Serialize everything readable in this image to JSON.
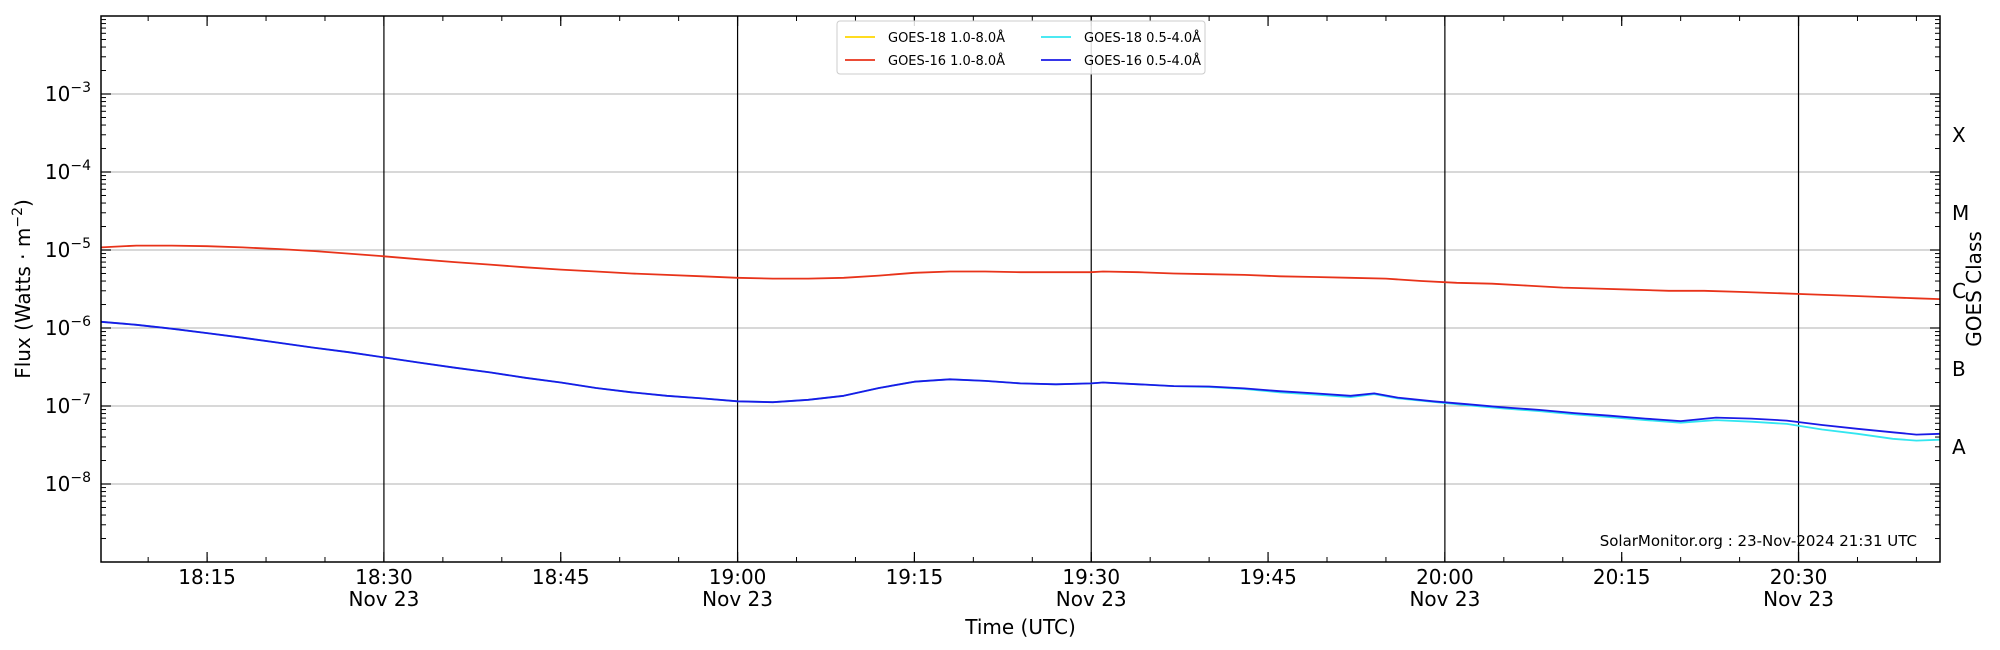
{
  "chart_data": {
    "type": "line",
    "title": "",
    "xlabel": "Time (UTC)",
    "ylabel": "Flux (Watts · m⁻²)",
    "y2label": "GOES Class",
    "yscale": "log",
    "ylim": [
      1e-09,
      0.01
    ],
    "xlim": [
      "18:06",
      "20:42"
    ],
    "grid": "horizontal at decades",
    "legend_position": "top-center",
    "credit": "SolarMonitor.org : 23-Nov-2024 21:31 UTC",
    "y_ticks": [
      {
        "value": 1e-08,
        "base": "10",
        "exp": "−8"
      },
      {
        "value": 1e-07,
        "base": "10",
        "exp": "−7"
      },
      {
        "value": 1e-06,
        "base": "10",
        "exp": "−6"
      },
      {
        "value": 1e-05,
        "base": "10",
        "exp": "−5"
      },
      {
        "value": 0.0001,
        "base": "10",
        "exp": "−4"
      },
      {
        "value": 0.001,
        "base": "10",
        "exp": "−3"
      }
    ],
    "x_ticks": [
      {
        "time": "18:15",
        "label": "18:15",
        "date": ""
      },
      {
        "time": "18:30",
        "label": "18:30",
        "date": "Nov 23"
      },
      {
        "time": "18:45",
        "label": "18:45",
        "date": ""
      },
      {
        "time": "19:00",
        "label": "19:00",
        "date": "Nov 23"
      },
      {
        "time": "19:15",
        "label": "19:15",
        "date": ""
      },
      {
        "time": "19:30",
        "label": "19:30",
        "date": "Nov 23"
      },
      {
        "time": "19:45",
        "label": "19:45",
        "date": ""
      },
      {
        "time": "20:00",
        "label": "20:00",
        "date": "Nov 23"
      },
      {
        "time": "20:15",
        "label": "20:15",
        "date": ""
      },
      {
        "time": "20:30",
        "label": "20:30",
        "date": "Nov 23"
      }
    ],
    "vertical_lines": [
      "18:30",
      "19:00",
      "19:30",
      "20:00",
      "20:30"
    ],
    "goes_classes": [
      {
        "label": "A",
        "flux": 3e-08
      },
      {
        "label": "B",
        "flux": 3e-07
      },
      {
        "label": "C",
        "flux": 3e-06
      },
      {
        "label": "M",
        "flux": 3e-05
      },
      {
        "label": "X",
        "flux": 0.0003
      }
    ],
    "series": [
      {
        "name": "GOES-18 1.0-8.0Å",
        "color": "#ffd700",
        "points": []
      },
      {
        "name": "GOES-16 1.0-8.0Å",
        "color": "#e8331a",
        "points": [
          [
            "18:06",
            1.08e-05
          ],
          [
            "18:09",
            1.14e-05
          ],
          [
            "18:12",
            1.14e-05
          ],
          [
            "18:15",
            1.12e-05
          ],
          [
            "18:18",
            1.08e-05
          ],
          [
            "18:21",
            1.03e-05
          ],
          [
            "18:24",
            9.7e-06
          ],
          [
            "18:27",
            9e-06
          ],
          [
            "18:30",
            8.3e-06
          ],
          [
            "18:33",
            7.6e-06
          ],
          [
            "18:36",
            7e-06
          ],
          [
            "18:39",
            6.5e-06
          ],
          [
            "18:42",
            6e-06
          ],
          [
            "18:45",
            5.6e-06
          ],
          [
            "18:48",
            5.3e-06
          ],
          [
            "18:51",
            5e-06
          ],
          [
            "18:54",
            4.8e-06
          ],
          [
            "18:57",
            4.6e-06
          ],
          [
            "19:00",
            4.4e-06
          ],
          [
            "19:03",
            4.3e-06
          ],
          [
            "19:06",
            4.3e-06
          ],
          [
            "19:09",
            4.4e-06
          ],
          [
            "19:12",
            4.7e-06
          ],
          [
            "19:15",
            5.1e-06
          ],
          [
            "19:18",
            5.3e-06
          ],
          [
            "19:21",
            5.3e-06
          ],
          [
            "19:24",
            5.2e-06
          ],
          [
            "19:27",
            5.2e-06
          ],
          [
            "19:30",
            5.2e-06
          ],
          [
            "19:31",
            5.3e-06
          ],
          [
            "19:34",
            5.2e-06
          ],
          [
            "19:37",
            5e-06
          ],
          [
            "19:40",
            4.9e-06
          ],
          [
            "19:43",
            4.8e-06
          ],
          [
            "19:46",
            4.6e-06
          ],
          [
            "19:49",
            4.5e-06
          ],
          [
            "19:52",
            4.4e-06
          ],
          [
            "19:55",
            4.3e-06
          ],
          [
            "19:58",
            4e-06
          ],
          [
            "20:01",
            3.8e-06
          ],
          [
            "20:04",
            3.7e-06
          ],
          [
            "20:07",
            3.5e-06
          ],
          [
            "20:10",
            3.3e-06
          ],
          [
            "20:13",
            3.2e-06
          ],
          [
            "20:16",
            3.1e-06
          ],
          [
            "20:19",
            3e-06
          ],
          [
            "20:22",
            3e-06
          ],
          [
            "20:25",
            2.9e-06
          ],
          [
            "20:28",
            2.8e-06
          ],
          [
            "20:31",
            2.7e-06
          ],
          [
            "20:34",
            2.6e-06
          ],
          [
            "20:37",
            2.5e-06
          ],
          [
            "20:40",
            2.4e-06
          ],
          [
            "20:42",
            2.35e-06
          ]
        ]
      },
      {
        "name": "GOES-18 0.5-4.0Å",
        "color": "#33e6f0",
        "points": [
          [
            "18:06",
            1.2e-06
          ],
          [
            "18:09",
            1.1e-06
          ],
          [
            "18:12",
            9.8e-07
          ],
          [
            "18:15",
            8.6e-07
          ],
          [
            "18:18",
            7.5e-07
          ],
          [
            "18:21",
            6.5e-07
          ],
          [
            "18:24",
            5.6e-07
          ],
          [
            "18:27",
            4.9e-07
          ],
          [
            "18:30",
            4.2e-07
          ],
          [
            "18:33",
            3.6e-07
          ],
          [
            "18:36",
            3.1e-07
          ],
          [
            "18:39",
            2.7e-07
          ],
          [
            "18:42",
            2.3e-07
          ],
          [
            "18:45",
            2e-07
          ],
          [
            "18:48",
            1.7e-07
          ],
          [
            "18:51",
            1.5e-07
          ],
          [
            "18:54",
            1.35e-07
          ],
          [
            "18:57",
            1.25e-07
          ],
          [
            "19:00",
            1.15e-07
          ],
          [
            "19:03",
            1.12e-07
          ],
          [
            "19:06",
            1.2e-07
          ],
          [
            "19:09",
            1.35e-07
          ],
          [
            "19:12",
            1.7e-07
          ],
          [
            "19:15",
            2.05e-07
          ],
          [
            "19:18",
            2.2e-07
          ],
          [
            "19:21",
            2.1e-07
          ],
          [
            "19:24",
            1.95e-07
          ],
          [
            "19:27",
            1.9e-07
          ],
          [
            "19:30",
            1.95e-07
          ],
          [
            "19:31",
            2e-07
          ],
          [
            "19:34",
            1.9e-07
          ],
          [
            "19:37",
            1.8e-07
          ],
          [
            "19:40",
            1.75e-07
          ],
          [
            "19:43",
            1.65e-07
          ],
          [
            "19:46",
            1.5e-07
          ],
          [
            "19:49",
            1.4e-07
          ],
          [
            "19:52",
            1.3e-07
          ],
          [
            "19:54",
            1.42e-07
          ],
          [
            "19:56",
            1.25e-07
          ],
          [
            "19:59",
            1.13e-07
          ],
          [
            "20:02",
            1.02e-07
          ],
          [
            "20:05",
            9.3e-08
          ],
          [
            "20:08",
            8.6e-08
          ],
          [
            "20:11",
            7.8e-08
          ],
          [
            "20:14",
            7.2e-08
          ],
          [
            "20:17",
            6.6e-08
          ],
          [
            "20:20",
            6.1e-08
          ],
          [
            "20:23",
            6.6e-08
          ],
          [
            "20:26",
            6.3e-08
          ],
          [
            "20:29",
            5.9e-08
          ],
          [
            "20:32",
            5e-08
          ],
          [
            "20:35",
            4.4e-08
          ],
          [
            "20:38",
            3.8e-08
          ],
          [
            "20:40",
            3.6e-08
          ],
          [
            "20:42",
            3.7e-08
          ]
        ]
      },
      {
        "name": "GOES-16 0.5-4.0Å",
        "color": "#1a1ae6",
        "points": [
          [
            "18:06",
            1.2e-06
          ],
          [
            "18:09",
            1.1e-06
          ],
          [
            "18:12",
            9.8e-07
          ],
          [
            "18:15",
            8.6e-07
          ],
          [
            "18:18",
            7.5e-07
          ],
          [
            "18:21",
            6.5e-07
          ],
          [
            "18:24",
            5.6e-07
          ],
          [
            "18:27",
            4.9e-07
          ],
          [
            "18:30",
            4.2e-07
          ],
          [
            "18:33",
            3.6e-07
          ],
          [
            "18:36",
            3.1e-07
          ],
          [
            "18:39",
            2.7e-07
          ],
          [
            "18:42",
            2.3e-07
          ],
          [
            "18:45",
            2e-07
          ],
          [
            "18:48",
            1.7e-07
          ],
          [
            "18:51",
            1.5e-07
          ],
          [
            "18:54",
            1.35e-07
          ],
          [
            "18:57",
            1.25e-07
          ],
          [
            "19:00",
            1.15e-07
          ],
          [
            "19:03",
            1.12e-07
          ],
          [
            "19:06",
            1.2e-07
          ],
          [
            "19:09",
            1.35e-07
          ],
          [
            "19:12",
            1.7e-07
          ],
          [
            "19:15",
            2.05e-07
          ],
          [
            "19:18",
            2.2e-07
          ],
          [
            "19:21",
            2.1e-07
          ],
          [
            "19:24",
            1.95e-07
          ],
          [
            "19:27",
            1.9e-07
          ],
          [
            "19:30",
            1.95e-07
          ],
          [
            "19:31",
            2e-07
          ],
          [
            "19:34",
            1.9e-07
          ],
          [
            "19:37",
            1.8e-07
          ],
          [
            "19:40",
            1.78e-07
          ],
          [
            "19:43",
            1.68e-07
          ],
          [
            "19:46",
            1.55e-07
          ],
          [
            "19:49",
            1.45e-07
          ],
          [
            "19:52",
            1.35e-07
          ],
          [
            "19:54",
            1.45e-07
          ],
          [
            "19:56",
            1.28e-07
          ],
          [
            "19:59",
            1.15e-07
          ],
          [
            "20:02",
            1.05e-07
          ],
          [
            "20:05",
            9.6e-08
          ],
          [
            "20:08",
            8.9e-08
          ],
          [
            "20:11",
            8.1e-08
          ],
          [
            "20:14",
            7.5e-08
          ],
          [
            "20:17",
            6.9e-08
          ],
          [
            "20:20",
            6.4e-08
          ],
          [
            "20:23",
            7.1e-08
          ],
          [
            "20:26",
            6.9e-08
          ],
          [
            "20:29",
            6.5e-08
          ],
          [
            "20:32",
            5.7e-08
          ],
          [
            "20:35",
            5.1e-08
          ],
          [
            "20:38",
            4.6e-08
          ],
          [
            "20:40",
            4.3e-08
          ],
          [
            "20:42",
            4.4e-08
          ]
        ]
      }
    ]
  }
}
